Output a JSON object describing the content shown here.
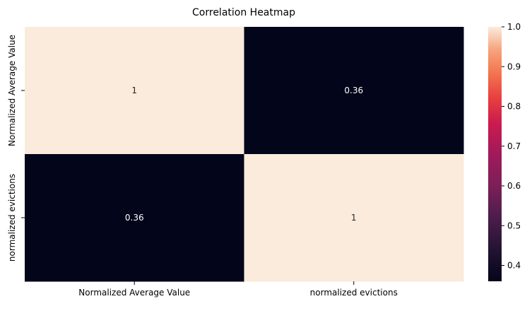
{
  "chart_data": {
    "type": "heatmap",
    "title": "Correlation Heatmap",
    "xlabel": "",
    "ylabel": "",
    "x_categories": [
      "Normalized Average Value",
      "normalized evictions"
    ],
    "y_categories": [
      "Normalized Average Value",
      "normalized evictions"
    ],
    "values": [
      [
        1,
        0.36
      ],
      [
        0.36,
        1
      ]
    ],
    "annotations": [
      [
        "1",
        "0.36"
      ],
      [
        "0.36",
        "1"
      ]
    ],
    "colorbar": {
      "range": [
        0.36,
        1.0
      ],
      "ticks": [
        0.4,
        0.5,
        0.6,
        0.7,
        0.8,
        0.9,
        1.0
      ],
      "tick_labels": [
        "0.4",
        "0.5",
        "0.6",
        "0.7",
        "0.8",
        "0.9",
        "1.0"
      ],
      "colormap": "rocket",
      "low_color": "#03051a",
      "high_color": "#faebdd"
    },
    "annotation_color_on_light": "#262626",
    "annotation_color_on_dark": "#ffffff"
  }
}
